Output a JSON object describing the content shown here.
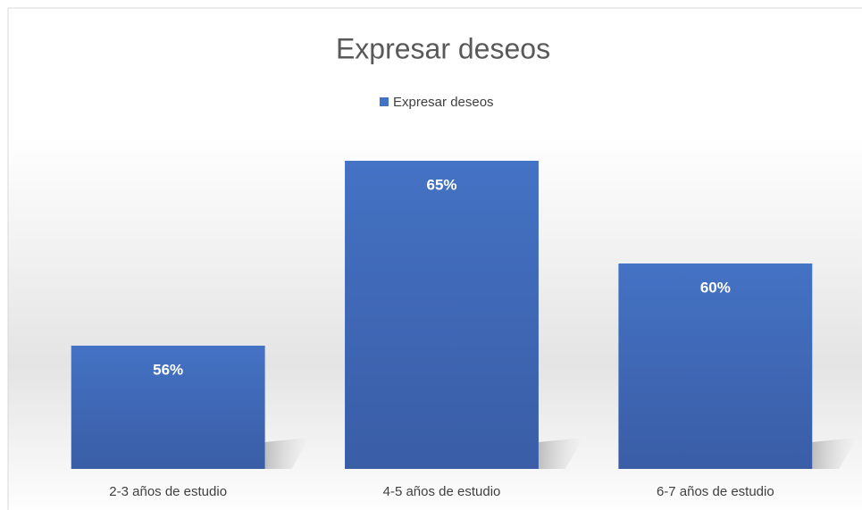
{
  "chart_data": {
    "type": "bar",
    "title": "Expresar deseos",
    "categories": [
      "2-3 años de estudio",
      "4-5 años de estudio",
      "6-7 años de estudio"
    ],
    "series": [
      {
        "name": "Expresar deseos",
        "color": "#4472c4",
        "values": [
          56,
          65,
          60
        ],
        "value_labels": [
          "56%",
          "65%",
          "60%"
        ]
      }
    ],
    "ylim": [
      50,
      65
    ],
    "legend": "top"
  }
}
